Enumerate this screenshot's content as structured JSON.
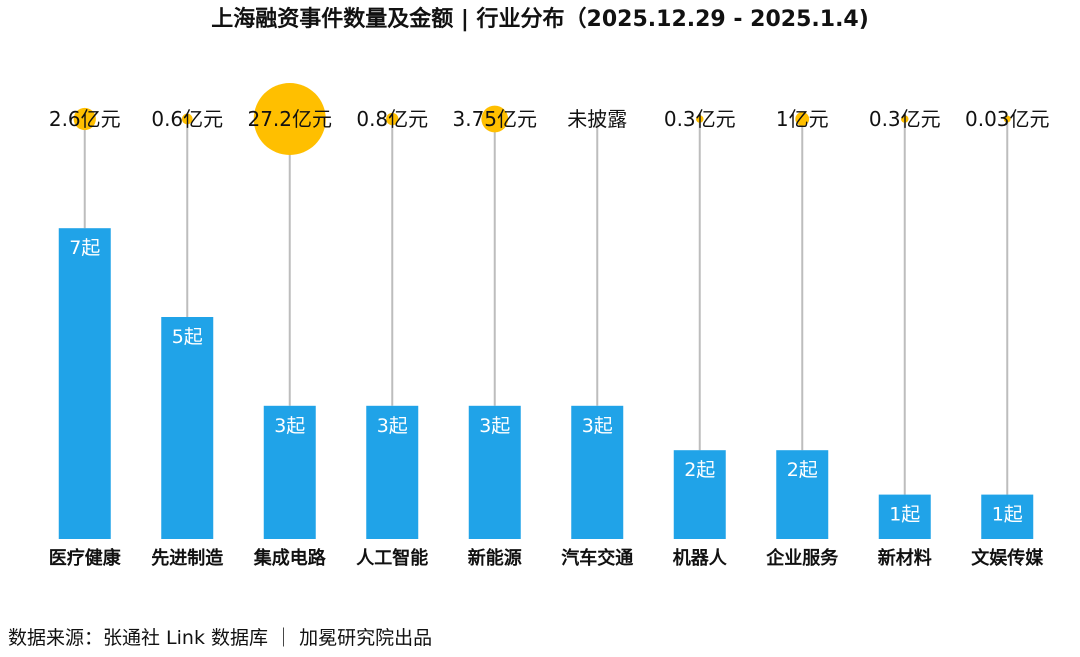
{
  "chart_data": {
    "type": "bar",
    "title": "上海融资事件数量及金额 | 行业分布（2025.12.29 - 2025.1.4)",
    "categories": [
      "医疗健康",
      "先进制造",
      "集成电路",
      "人工智能",
      "新能源",
      "汽车交通",
      "机器人",
      "企业服务",
      "新材料",
      "文娱传媒"
    ],
    "values": [
      7,
      5,
      3,
      3,
      3,
      3,
      2,
      2,
      1,
      1
    ],
    "count_labels": [
      "7起",
      "5起",
      "3起",
      "3起",
      "3起",
      "3起",
      "2起",
      "2起",
      "1起",
      "1起"
    ],
    "amount_labels": [
      "2.6亿元",
      "0.6亿元",
      "27.2亿元",
      "0.8亿元",
      "3.75亿元",
      "未披露",
      "0.3亿元",
      "1亿元",
      "0.3亿元",
      "0.03亿元"
    ],
    "amounts": [
      2.6,
      0.6,
      27.2,
      0.8,
      3.75,
      null,
      0.3,
      1,
      0.3,
      0.03
    ],
    "amount_unit": "亿元",
    "ylim": [
      0,
      7.5
    ],
    "xlabel": "",
    "ylabel": "",
    "colors": {
      "bar": "#20A3E8",
      "bubble": "#FFBF00",
      "stem": "#BDBDBD",
      "bar_label": "#FFFFFF",
      "text": "#111111"
    }
  },
  "footer": {
    "source": "数据来源：张通社 Link 数据库 ｜ 加冕研究院出品"
  }
}
